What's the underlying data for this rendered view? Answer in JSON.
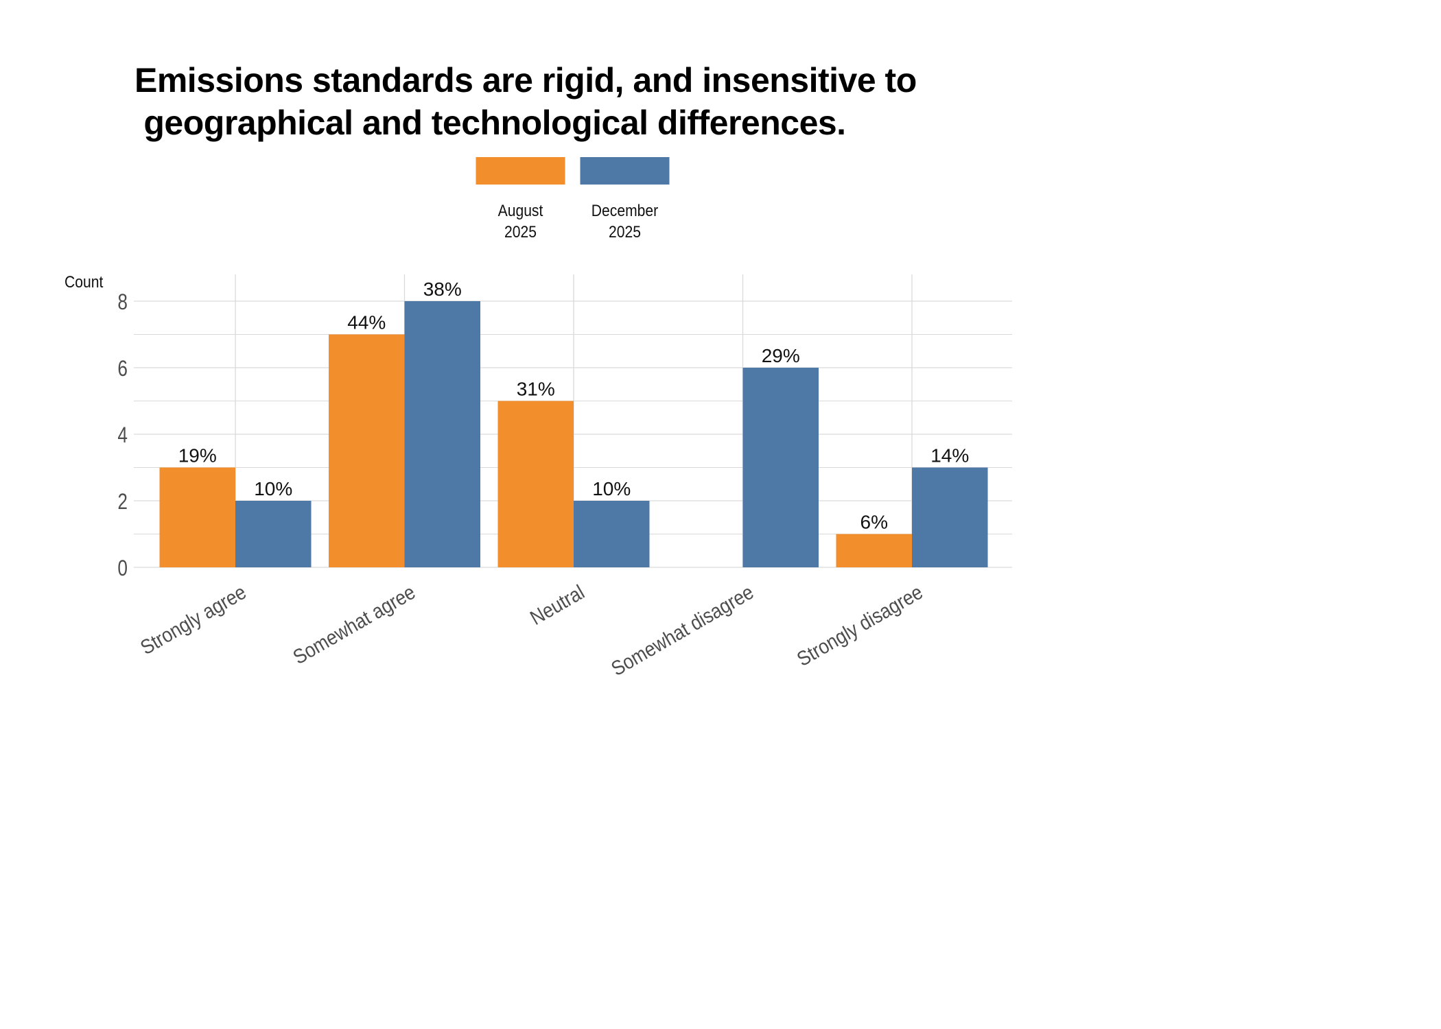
{
  "chart_data": {
    "type": "bar",
    "title_lines": [
      "Emissions standards are rigid, and insensitive to",
      " geographical and technological differences."
    ],
    "ylabel": "Count",
    "xlabel": "",
    "ylim": [
      0,
      8.8
    ],
    "yticks": [
      0,
      2,
      4,
      6,
      8
    ],
    "grid": true,
    "legend_position": "top-center",
    "categories": [
      "Strongly agree",
      "Somewhat agree",
      "Neutral",
      "Somewhat disagree",
      "Strongly disagree"
    ],
    "series": [
      {
        "name": "August 2025",
        "name_lines": [
          "August",
          "2025"
        ],
        "color": "#F28E2B",
        "values": [
          3,
          7,
          5,
          0,
          1
        ],
        "labels": [
          "19%",
          "44%",
          "31%",
          "",
          "6%"
        ]
      },
      {
        "name": "December 2025",
        "name_lines": [
          "December",
          "2025"
        ],
        "color": "#4E79A7",
        "values": [
          2,
          8,
          2,
          6,
          3
        ],
        "labels": [
          "10%",
          "38%",
          "10%",
          "29%",
          "14%"
        ]
      }
    ]
  }
}
